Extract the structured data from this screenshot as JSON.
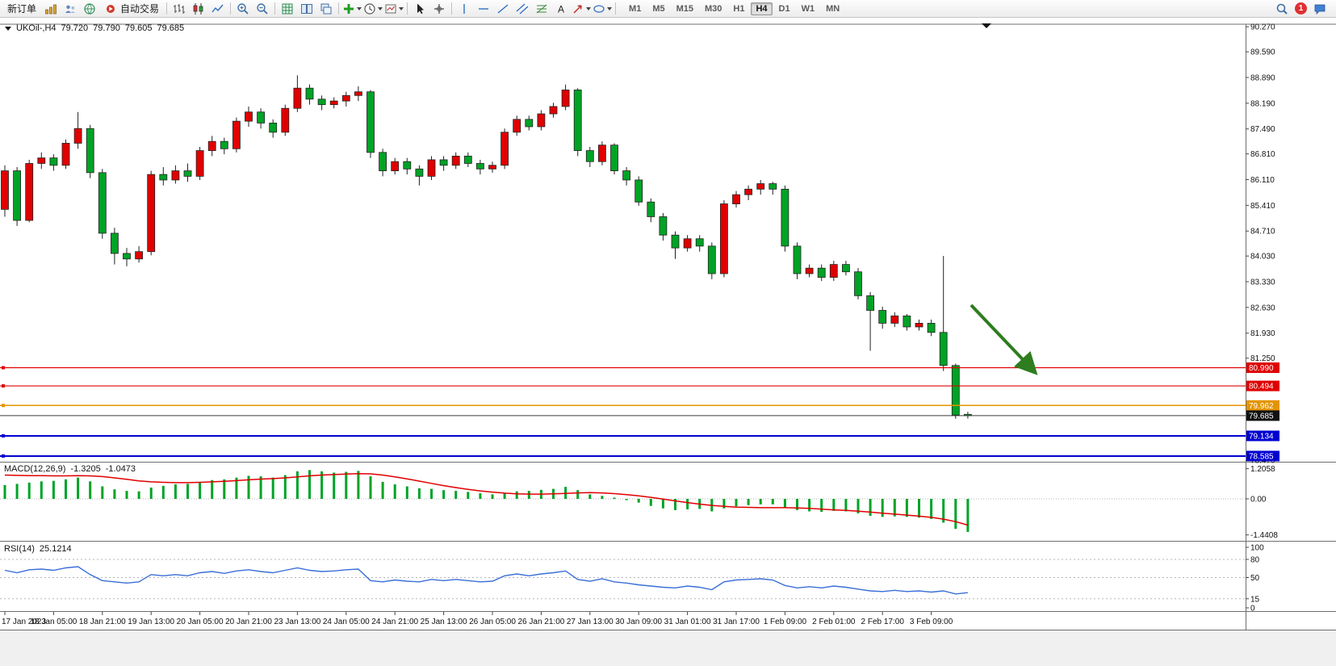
{
  "toolbar": {
    "new_order_label": "新订单",
    "autotrading_label": "自动交易",
    "icons_a": [
      "market-watch-icon",
      "navigator-icon",
      "terminal-icon"
    ],
    "icons_b": [
      "|",
      "bar-chart-icon",
      "candlestick-chart-icon",
      "line-chart-icon",
      "|",
      "zoom-in-icon",
      "zoom-out-icon",
      "|",
      "grid-icon",
      "tile-windows-icon",
      "cascade-windows-icon",
      "|",
      "new-chart-dropdown",
      "period-dropdown",
      "templates-dropdown",
      "|",
      "cursor-icon",
      "crosshair-icon",
      "|",
      "vertical-line-icon",
      "horizontal-line-icon",
      "trendline-icon",
      "channel-icon",
      "fibonacci-icon",
      "text-tool-icon",
      "arrows-dropdown",
      "shapes-dropdown",
      "|"
    ],
    "timeframes": [
      "M1",
      "M5",
      "M15",
      "M30",
      "H1",
      "H4",
      "D1",
      "W1",
      "MN"
    ],
    "active_timeframe": "H4",
    "notification_count": "1"
  },
  "chart": {
    "symbol_label": "UKOil-,H4",
    "ohlc": {
      "open": "79.720",
      "high": "79.790",
      "low": "79.605",
      "close": "79.685"
    },
    "price_axis_ticks": [
      "90.270",
      "89.590",
      "88.890",
      "88.190",
      "87.490",
      "86.810",
      "86.110",
      "85.410",
      "84.710",
      "84.030",
      "83.330",
      "82.630",
      "81.930",
      "81.250",
      "78.470"
    ],
    "visible_range": {
      "pmax": 90.34,
      "pmin": 78.43
    },
    "hlines": [
      {
        "price": 80.99,
        "label": "80.990",
        "color": "#e00000",
        "tag_bg": "#e00000",
        "width": 1.2
      },
      {
        "price": 80.494,
        "label": "80.494",
        "color": "#e00000",
        "tag_bg": "#e00000",
        "width": 1.2
      },
      {
        "price": 79.962,
        "label": "79.962",
        "color": "#e49400",
        "tag_bg": "#e49400",
        "width": 1.5
      },
      {
        "price": 79.685,
        "label": "79.685",
        "color": "#3c3c3c",
        "tag_bg": "#111111",
        "width": 1,
        "is_current_price": true
      },
      {
        "price": 79.134,
        "label": "79.134",
        "color": "#0000d0",
        "tag_bg": "#0000d0",
        "width": 2
      },
      {
        "price": 78.585,
        "label": "78.585",
        "color": "#0000d0",
        "tag_bg": "#0000d0",
        "width": 2
      }
    ],
    "arrow_color": "#2e7d1f"
  },
  "chart_data": {
    "type": "candlestick",
    "symbol": "UKOil-",
    "timeframe": "H4",
    "up_color": "#e00000",
    "down_color": "#00a326",
    "note": "Chinese color convention: red = bullish, green = bearish",
    "x_labels": [
      "17 Jan 2023",
      "18 Jan 05:00",
      "18 Jan 21:00",
      "19 Jan 13:00",
      "20 Jan 05:00",
      "20 Jan 21:00",
      "23 Jan 13:00",
      "24 Jan 05:00",
      "24 Jan 21:00",
      "25 Jan 13:00",
      "26 Jan 05:00",
      "26 Jan 21:00",
      "27 Jan 13:00",
      "30 Jan 09:00",
      "31 Jan 01:00",
      "31 Jan 17:00",
      "1 Feb 09:00",
      "2 Feb 01:00",
      "2 Feb 17:00",
      "3 Feb 09:00"
    ],
    "candles": [
      [
        85.3,
        86.5,
        85.1,
        86.35
      ],
      [
        86.35,
        86.45,
        84.85,
        85.0
      ],
      [
        85.0,
        86.65,
        84.95,
        86.55
      ],
      [
        86.55,
        86.85,
        86.4,
        86.7
      ],
      [
        86.7,
        86.8,
        86.35,
        86.5
      ],
      [
        86.5,
        87.2,
        86.4,
        87.1
      ],
      [
        87.1,
        87.95,
        86.95,
        87.5
      ],
      [
        87.5,
        87.6,
        86.15,
        86.3
      ],
      [
        86.3,
        86.4,
        84.5,
        84.65
      ],
      [
        84.65,
        84.8,
        83.8,
        84.1
      ],
      [
        84.1,
        84.25,
        83.75,
        83.95
      ],
      [
        83.95,
        84.3,
        83.85,
        84.15
      ],
      [
        84.15,
        86.35,
        84.05,
        86.25
      ],
      [
        86.25,
        86.45,
        85.95,
        86.1
      ],
      [
        86.1,
        86.5,
        86.0,
        86.35
      ],
      [
        86.35,
        86.55,
        86.05,
        86.2
      ],
      [
        86.2,
        87.0,
        86.1,
        86.9
      ],
      [
        86.9,
        87.3,
        86.75,
        87.15
      ],
      [
        87.15,
        87.25,
        86.8,
        86.95
      ],
      [
        86.95,
        87.8,
        86.85,
        87.7
      ],
      [
        87.7,
        88.1,
        87.55,
        87.95
      ],
      [
        87.95,
        88.05,
        87.5,
        87.65
      ],
      [
        87.65,
        87.75,
        87.25,
        87.4
      ],
      [
        87.4,
        88.15,
        87.3,
        88.05
      ],
      [
        88.05,
        88.95,
        87.95,
        88.6
      ],
      [
        88.6,
        88.7,
        88.15,
        88.3
      ],
      [
        88.3,
        88.4,
        88.0,
        88.15
      ],
      [
        88.15,
        88.35,
        88.05,
        88.25
      ],
      [
        88.25,
        88.5,
        88.1,
        88.4
      ],
      [
        88.4,
        88.65,
        88.25,
        88.5
      ],
      [
        88.5,
        88.55,
        86.7,
        86.85
      ],
      [
        86.85,
        86.95,
        86.2,
        86.35
      ],
      [
        86.35,
        86.7,
        86.25,
        86.6
      ],
      [
        86.6,
        86.7,
        86.25,
        86.4
      ],
      [
        86.4,
        86.5,
        85.95,
        86.2
      ],
      [
        86.2,
        86.75,
        86.1,
        86.65
      ],
      [
        86.65,
        86.75,
        86.35,
        86.5
      ],
      [
        86.5,
        86.85,
        86.4,
        86.75
      ],
      [
        86.75,
        86.85,
        86.45,
        86.55
      ],
      [
        86.55,
        86.65,
        86.25,
        86.4
      ],
      [
        86.4,
        86.6,
        86.3,
        86.5
      ],
      [
        86.5,
        87.5,
        86.4,
        87.4
      ],
      [
        87.4,
        87.85,
        87.3,
        87.75
      ],
      [
        87.75,
        87.85,
        87.45,
        87.55
      ],
      [
        87.55,
        88.0,
        87.45,
        87.9
      ],
      [
        87.9,
        88.2,
        87.8,
        88.1
      ],
      [
        88.1,
        88.7,
        88.0,
        88.55
      ],
      [
        88.55,
        88.6,
        86.75,
        86.9
      ],
      [
        86.9,
        87.0,
        86.45,
        86.6
      ],
      [
        86.6,
        87.15,
        86.5,
        87.05
      ],
      [
        87.05,
        87.1,
        86.25,
        86.35
      ],
      [
        86.35,
        86.45,
        85.95,
        86.1
      ],
      [
        86.1,
        86.2,
        85.4,
        85.5
      ],
      [
        85.5,
        85.6,
        84.95,
        85.1
      ],
      [
        85.1,
        85.2,
        84.45,
        84.6
      ],
      [
        84.6,
        84.7,
        83.95,
        84.25
      ],
      [
        84.25,
        84.6,
        84.15,
        84.5
      ],
      [
        84.5,
        84.6,
        84.15,
        84.3
      ],
      [
        84.3,
        84.4,
        83.4,
        83.55
      ],
      [
        83.55,
        85.55,
        83.45,
        85.45
      ],
      [
        85.45,
        85.8,
        85.35,
        85.7
      ],
      [
        85.7,
        85.95,
        85.55,
        85.85
      ],
      [
        85.85,
        86.1,
        85.7,
        86.0
      ],
      [
        86.0,
        86.05,
        85.7,
        85.85
      ],
      [
        85.85,
        85.95,
        84.15,
        84.3
      ],
      [
        84.3,
        84.4,
        83.4,
        83.55
      ],
      [
        83.55,
        83.8,
        83.45,
        83.7
      ],
      [
        83.7,
        83.8,
        83.35,
        83.45
      ],
      [
        83.45,
        83.9,
        83.35,
        83.8
      ],
      [
        83.8,
        83.9,
        83.5,
        83.6
      ],
      [
        83.6,
        83.7,
        82.85,
        82.95
      ],
      [
        82.95,
        83.05,
        81.45,
        82.55
      ],
      [
        82.55,
        82.65,
        82.05,
        82.2
      ],
      [
        82.2,
        82.5,
        82.1,
        82.4
      ],
      [
        82.4,
        82.45,
        82.0,
        82.1
      ],
      [
        82.1,
        82.3,
        82.0,
        82.2
      ],
      [
        82.2,
        82.3,
        81.85,
        81.95
      ],
      [
        81.95,
        84.03,
        80.9,
        81.05
      ],
      [
        81.05,
        81.1,
        79.6,
        79.7
      ],
      [
        79.72,
        79.79,
        79.605,
        79.685
      ]
    ],
    "indicators": {
      "macd": {
        "name": "MACD(12,26,9)",
        "main_value": "-1.3205",
        "signal_value": "-1.0473",
        "scale": [
          "1.2058",
          "0.00",
          "-1.4408"
        ],
        "histogram_color": "#00a326",
        "signal_color": "#e00000",
        "histogram": [
          0.55,
          0.6,
          0.65,
          0.7,
          0.72,
          0.78,
          0.85,
          0.7,
          0.5,
          0.38,
          0.32,
          0.3,
          0.45,
          0.52,
          0.58,
          0.6,
          0.68,
          0.75,
          0.78,
          0.85,
          0.92,
          0.9,
          0.85,
          0.95,
          1.1,
          1.15,
          1.1,
          1.05,
          1.08,
          1.12,
          0.9,
          0.68,
          0.58,
          0.5,
          0.42,
          0.4,
          0.35,
          0.32,
          0.28,
          0.22,
          0.18,
          0.22,
          0.3,
          0.32,
          0.36,
          0.4,
          0.48,
          0.35,
          0.18,
          0.12,
          0.05,
          -0.05,
          -0.15,
          -0.28,
          -0.38,
          -0.45,
          -0.42,
          -0.4,
          -0.5,
          -0.38,
          -0.3,
          -0.25,
          -0.22,
          -0.22,
          -0.35,
          -0.45,
          -0.5,
          -0.52,
          -0.48,
          -0.5,
          -0.58,
          -0.68,
          -0.72,
          -0.7,
          -0.72,
          -0.75,
          -0.8,
          -0.95,
          -1.2,
          -1.32
        ],
        "signal": [
          0.95,
          0.94,
          0.93,
          0.93,
          0.92,
          0.92,
          0.93,
          0.92,
          0.89,
          0.84,
          0.78,
          0.72,
          0.68,
          0.66,
          0.65,
          0.65,
          0.66,
          0.68,
          0.7,
          0.73,
          0.76,
          0.79,
          0.81,
          0.84,
          0.88,
          0.92,
          0.95,
          0.97,
          0.99,
          1.01,
          1.0,
          0.95,
          0.88,
          0.8,
          0.71,
          0.62,
          0.53,
          0.45,
          0.38,
          0.32,
          0.27,
          0.23,
          0.2,
          0.19,
          0.19,
          0.2,
          0.22,
          0.24,
          0.25,
          0.24,
          0.21,
          0.17,
          0.12,
          0.06,
          -0.01,
          -0.08,
          -0.15,
          -0.21,
          -0.26,
          -0.3,
          -0.33,
          -0.34,
          -0.35,
          -0.35,
          -0.35,
          -0.36,
          -0.38,
          -0.41,
          -0.44,
          -0.46,
          -0.49,
          -0.53,
          -0.57,
          -0.61,
          -0.65,
          -0.69,
          -0.74,
          -0.81,
          -0.91,
          -1.05
        ]
      },
      "rsi": {
        "name": "RSI(14)",
        "value": "25.1214",
        "line_color": "#3a6fd8",
        "scale": [
          "100",
          "80",
          "50",
          "15",
          "0"
        ],
        "levels": [
          80,
          50,
          15
        ],
        "values": [
          62,
          58,
          63,
          64,
          62,
          66,
          68,
          55,
          45,
          43,
          41,
          43,
          55,
          53,
          55,
          53,
          58,
          60,
          57,
          61,
          63,
          60,
          58,
          62,
          66,
          62,
          60,
          61,
          63,
          64,
          45,
          43,
          46,
          44,
          43,
          47,
          45,
          47,
          45,
          43,
          44,
          53,
          56,
          53,
          56,
          58,
          61,
          47,
          44,
          48,
          43,
          41,
          38,
          36,
          34,
          33,
          36,
          34,
          30,
          43,
          46,
          47,
          48,
          46,
          37,
          33,
          35,
          33,
          36,
          34,
          31,
          28,
          27,
          29,
          27,
          28,
          26,
          28,
          23,
          25.12
        ]
      }
    }
  }
}
